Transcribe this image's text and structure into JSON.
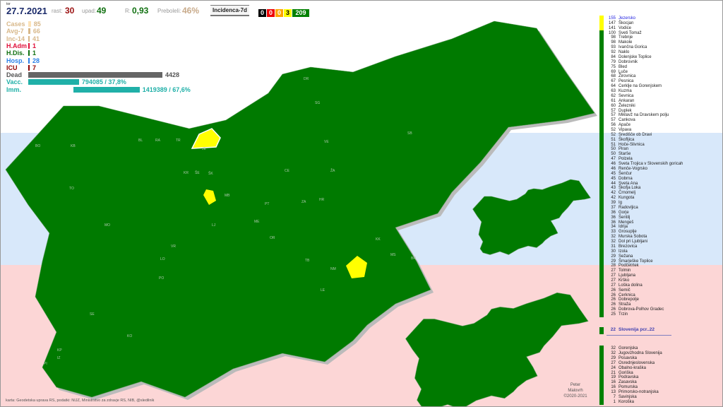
{
  "header": {
    "day": "tor",
    "date": "27.7.2021",
    "rast_label": "rast:",
    "rast": "30",
    "upad_label": "upad:",
    "upad": "49",
    "r_label": "R:",
    "r": "0,93",
    "prebol_label": "Preboleli:",
    "prebol": "46%",
    "mode_button": "Incidenca-7d",
    "badges": [
      {
        "v": "0",
        "bg": "#000000",
        "fg": "#ffffff"
      },
      {
        "v": "0",
        "bg": "#ee0000",
        "fg": "#ffffff"
      },
      {
        "v": "0",
        "bg": "#ffa500",
        "fg": "#ffffff"
      },
      {
        "v": "3",
        "bg": "#ffff00",
        "fg": "#000000"
      },
      {
        "v": "209",
        "bg": "#008000",
        "fg": "#ffffff"
      }
    ]
  },
  "stats": [
    {
      "label": "Cases",
      "value": "85",
      "color": "#d8b88a",
      "bar": "#fde3b8",
      "frac": 0.02
    },
    {
      "label": "Avg-7",
      "value": "66",
      "color": "#d8b88a",
      "bar": "#d8b88a",
      "frac": 0.015
    },
    {
      "label": "Inc-14",
      "value": "41",
      "color": "#d8b88a",
      "bar": "#d8b88a",
      "frac": 0.01
    },
    {
      "label": "H.Adm",
      "value": "1",
      "color": "#e0103a",
      "bar": "#e0103a",
      "frac": 0.001
    },
    {
      "label": "H.Dis.",
      "value": "1",
      "color": "#107010",
      "bar": "#107010",
      "frac": 0.001
    },
    {
      "label": "Hosp.",
      "value": "28",
      "color": "#2a80e8",
      "bar": "#2a80e8",
      "frac": 0.006
    },
    {
      "label": "ICU",
      "value": "7",
      "color": "#900000",
      "bar": "#900000",
      "frac": 0.001
    },
    {
      "label": "Dead",
      "value": "4428",
      "color": "#555555",
      "bar": "#666666",
      "frac": 1
    },
    {
      "label": "Vacc.",
      "value": "794085 / 37,8%",
      "color": "#20b0a8",
      "bar": "#20b0a8",
      "frac": 0.378
    },
    {
      "label": "Imm.",
      "value": "1419389 / 67,6%",
      "color": "#20b0a8",
      "bar": "#20b0a8",
      "frac": 0.676
    }
  ],
  "colors": {
    "green": "#008000",
    "yellow": "#ffff00",
    "blue_band": "#d8e8fa",
    "pink_band": "#fcd6d6"
  },
  "municipalities": [
    [
      "155",
      "Jezersko"
    ],
    [
      "147",
      "Škocjan"
    ],
    [
      "141",
      "Vodice"
    ],
    [
      "100",
      "Sveti Tomaž"
    ],
    [
      "98",
      "Trebnje"
    ],
    [
      "98",
      "Makole"
    ],
    [
      "93",
      "Ivančna Gorica"
    ],
    [
      "92",
      "Naklo"
    ],
    [
      "84",
      "Dolenjske Toplice"
    ],
    [
      "79",
      "Dobrovnik"
    ],
    [
      "75",
      "Bled"
    ],
    [
      "69",
      "Luče"
    ],
    [
      "68",
      "Žirovnica"
    ],
    [
      "67",
      "Pesnica"
    ],
    [
      "64",
      "Cerklje na Gorenjskem"
    ],
    [
      "63",
      "Kuzma"
    ],
    [
      "62",
      "Sevnica"
    ],
    [
      "61",
      "Ankaran"
    ],
    [
      "60",
      "Železniki"
    ],
    [
      "57",
      "Duplek"
    ],
    [
      "57",
      "Miklavž na Dravskem polju"
    ],
    [
      "57",
      "Cankova"
    ],
    [
      "56",
      "Apače"
    ],
    [
      "52",
      "Vipava"
    ],
    [
      "52",
      "Središče ob Dravi"
    ],
    [
      "51",
      "Škofljica"
    ],
    [
      "51",
      "Hoče-Slivnica"
    ],
    [
      "50",
      "Piran"
    ],
    [
      "50",
      "Starše"
    ],
    [
      "47",
      "Polzela"
    ],
    [
      "46",
      "Sveta Trojica v Slovenskih goricah"
    ],
    [
      "46",
      "Renče-Vogrsko"
    ],
    [
      "45",
      "Šenčur"
    ],
    [
      "45",
      "Dobrna"
    ],
    [
      "44",
      "Sveta Ana"
    ],
    [
      "43",
      "Škofja Loka"
    ],
    [
      "42",
      "Črnomelj"
    ],
    [
      "42",
      "Kungota"
    ],
    [
      "39",
      "Ig"
    ],
    [
      "37",
      "Radovljica"
    ],
    [
      "36",
      "Gorje"
    ],
    [
      "36",
      "Šentilj"
    ],
    [
      "36",
      "Mengeš"
    ],
    [
      "34",
      "Idrija"
    ],
    [
      "33",
      "Grosuplje"
    ],
    [
      "32",
      "Murska Sobota"
    ],
    [
      "32",
      "Dol pri Ljubljani"
    ],
    [
      "31",
      "Brezovica"
    ],
    [
      "30",
      "Izola"
    ],
    [
      "29",
      "Sežana"
    ],
    [
      "29",
      "Šmarješke Toplice"
    ],
    [
      "28",
      "Podčetrtek"
    ],
    [
      "27",
      "Tolmin"
    ],
    [
      "27",
      "Ljubljana"
    ],
    [
      "27",
      "Krško"
    ],
    [
      "27",
      "Loška dolina"
    ],
    [
      "26",
      "Semič"
    ],
    [
      "26",
      "Cerknica"
    ],
    [
      "26",
      "Dobrepolje"
    ],
    [
      "26",
      "Straža"
    ],
    [
      "26",
      "Dobrova-Polhov Gradec"
    ],
    [
      "25",
      "Trzin"
    ]
  ],
  "slovenia": {
    "value": "22",
    "label": "Slovenija pcr..22"
  },
  "regions": [
    [
      "32",
      "Gorenjska"
    ],
    [
      "32",
      "Jugovzhodna Slovenija"
    ],
    [
      "29",
      "Posavska"
    ],
    [
      "27",
      "Osrednjeslovenska"
    ],
    [
      "24",
      "Obalno-kraška"
    ],
    [
      "21",
      "Goriška"
    ],
    [
      "19",
      "Podravska"
    ],
    [
      "16",
      "Zasavska"
    ],
    [
      "16",
      "Pomurska"
    ],
    [
      "13",
      "Primorsko-notranjska"
    ],
    [
      "7",
      "Savinjska"
    ],
    [
      "1",
      "Koroška"
    ]
  ],
  "footer": {
    "source": "karta: Geodetska uprava RS,  podatki: NIJZ, Ministrstvo za zdravje RS, NIB, @sledilnik",
    "author1": "Peter",
    "author2": "Malovrh",
    "copyright": "©2020-2021"
  },
  "map_labels": [
    "BO",
    "KB",
    "BL",
    "RA",
    "TR",
    "JE",
    "KR",
    "ŠE",
    "CE",
    "ŠK",
    "MB",
    "PO",
    "LJ",
    "VR",
    "LO",
    "NM",
    "KO",
    "PI",
    "IZ",
    "SE",
    "KP",
    "TO",
    "MO",
    "ME",
    "LE",
    "MS",
    "PT",
    "OR",
    "ZA",
    "TB",
    "BR",
    "KK",
    "SB",
    "VE",
    "SG",
    "DR",
    "HR",
    "ŽA"
  ]
}
